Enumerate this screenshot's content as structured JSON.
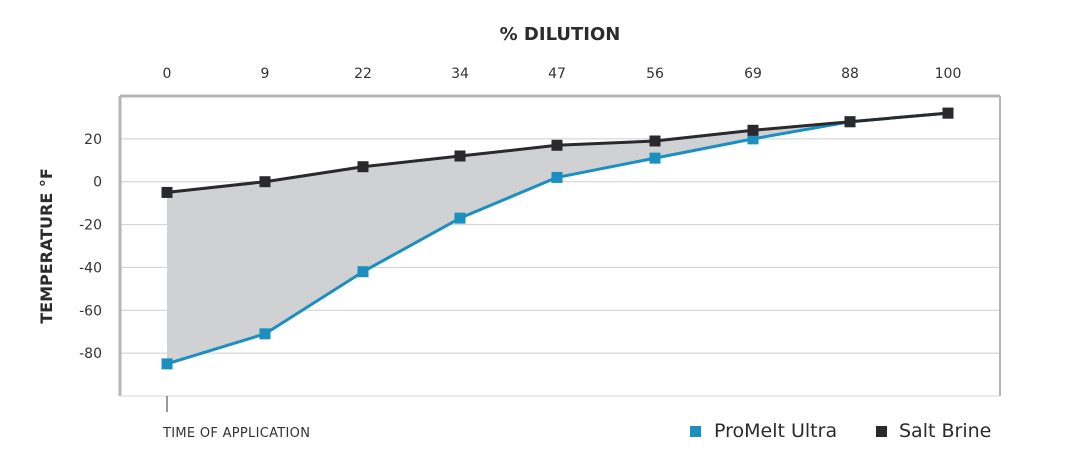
{
  "chart_data": {
    "type": "area",
    "title": "",
    "xlabel": "% DILUTION",
    "ylabel": "TEMPERATURE °F",
    "x": [
      "0",
      "9",
      "22",
      "34",
      "47",
      "56",
      "69",
      "88",
      "100"
    ],
    "ylim": [
      -100,
      40
    ],
    "yticks": [
      20,
      0,
      -20,
      -40,
      -60,
      -80
    ],
    "ytick_labels": [
      "20",
      "0",
      "-20",
      "-40",
      "-60",
      "-80"
    ],
    "grid": true,
    "legend_position": "bottom-right",
    "series": [
      {
        "name": "ProMelt Ultra",
        "color": "#1a8fc0",
        "values": [
          -85,
          -71,
          -42,
          -17,
          2,
          11,
          20,
          28,
          32
        ]
      },
      {
        "name": "Salt Brine",
        "color": "#2a2a2e",
        "values": [
          -5,
          0,
          7,
          12,
          17,
          19,
          24,
          28,
          32
        ]
      }
    ],
    "fill_between_color": "#d0d1d3",
    "annotation": "TIME OF APPLICATION"
  }
}
